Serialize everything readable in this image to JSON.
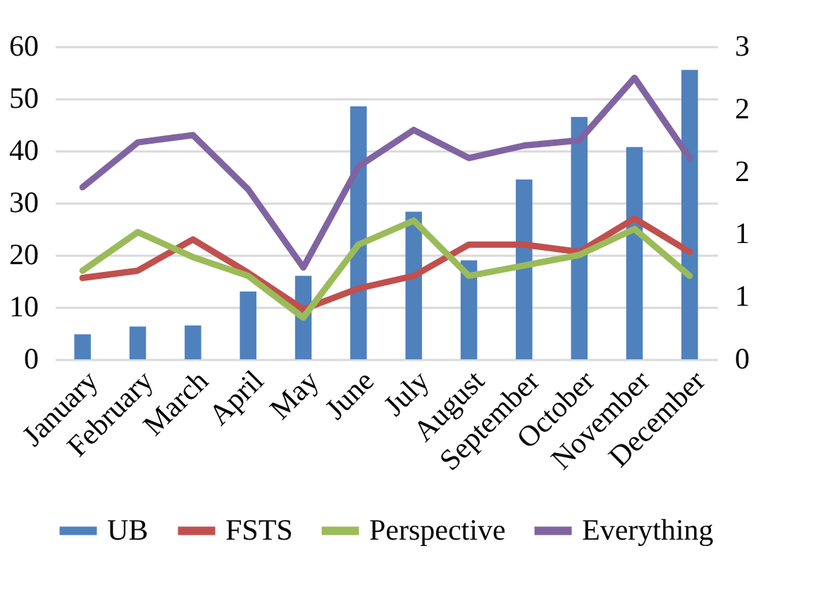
{
  "chart_data": {
    "type": "bar",
    "categories": [
      "January",
      "February",
      "March",
      "April",
      "May",
      "June",
      "July",
      "August",
      "September",
      "October",
      "November",
      "December"
    ],
    "series": [
      {
        "name": "UB",
        "color": "#4f81bd",
        "values": [
          4.8,
          6.3,
          6.5,
          13,
          16,
          48.5,
          28.3,
          19,
          34.5,
          46.5,
          40.7,
          55.5
        ]
      },
      {
        "name": "FSTS",
        "type": "line",
        "axis": "y2",
        "color": "#c0504d",
        "values": [
          0.78,
          0.85,
          1.15,
          0.83,
          0.48,
          0.68,
          0.8,
          1.1,
          1.1,
          1.03,
          1.35,
          1.03
        ]
      },
      {
        "name": "Perspective",
        "type": "line",
        "axis": "y2",
        "color": "#9bbb59",
        "values": [
          0.85,
          1.22,
          0.98,
          0.8,
          0.4,
          1.1,
          1.33,
          0.8,
          0.9,
          1.0,
          1.25,
          0.8
        ]
      },
      {
        "name": "Everything",
        "type": "line",
        "axis": "y2",
        "color": "#8064a2",
        "values": [
          1.65,
          2.08,
          2.15,
          1.63,
          0.88,
          1.85,
          2.2,
          1.93,
          2.05,
          2.1,
          2.7,
          1.93
        ]
      }
    ],
    "ylim": [
      0,
      60
    ],
    "yticks": [
      0,
      10,
      20,
      30,
      40,
      50,
      60
    ],
    "y2lim": [
      0,
      3
    ],
    "y2ticks": [
      0,
      {
        "value": 0.6,
        "label": "1"
      },
      {
        "value": 1.2,
        "label": "1"
      },
      {
        "value": 1.8,
        "label": "2"
      },
      {
        "value": 2.4,
        "label": "2"
      },
      3
    ],
    "grid": "y",
    "legend": "bottom",
    "marker": "none",
    "line_style": "solid"
  }
}
